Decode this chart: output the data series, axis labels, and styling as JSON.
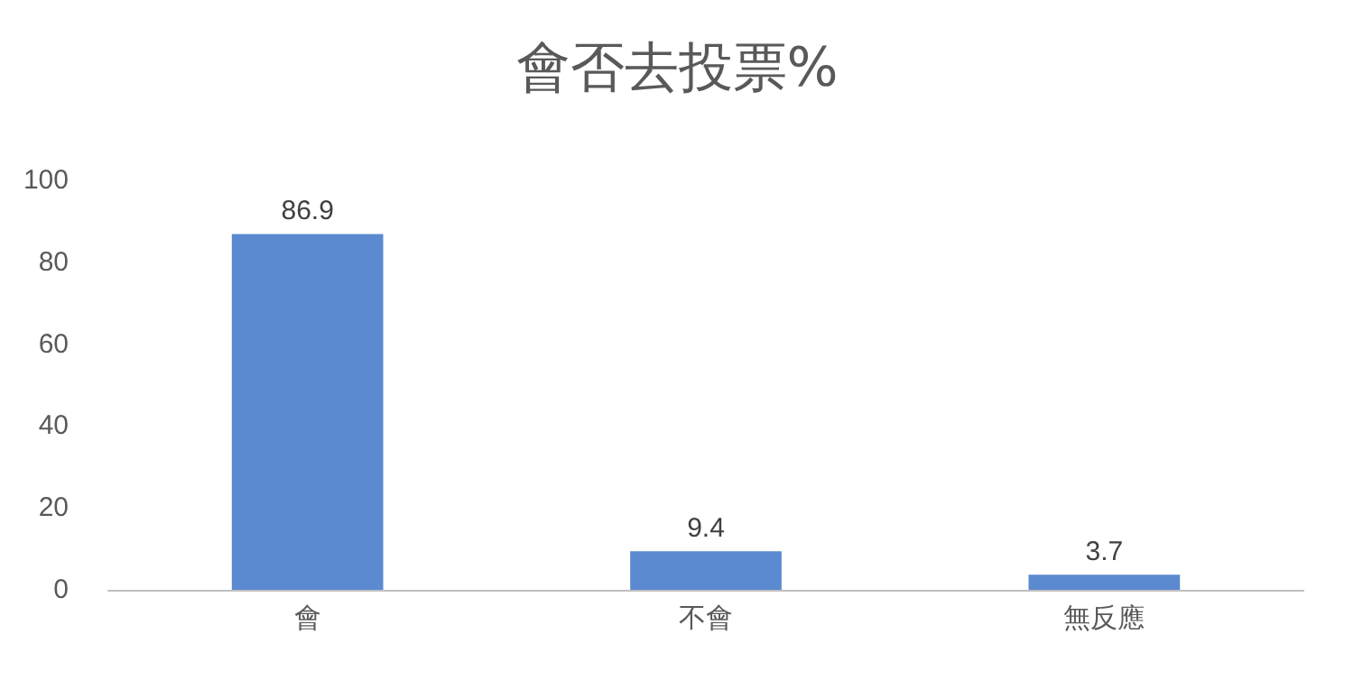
{
  "chart_data": {
    "type": "bar",
    "title": "會否去投票%",
    "categories": [
      "會",
      "不會",
      "無反應"
    ],
    "values": [
      86.9,
      9.4,
      3.7
    ],
    "color": "#5b8ad0",
    "ylim": [
      0,
      100
    ],
    "yticks": [
      0,
      20,
      40,
      60,
      80,
      100
    ],
    "grid": false,
    "data_labels": true
  }
}
